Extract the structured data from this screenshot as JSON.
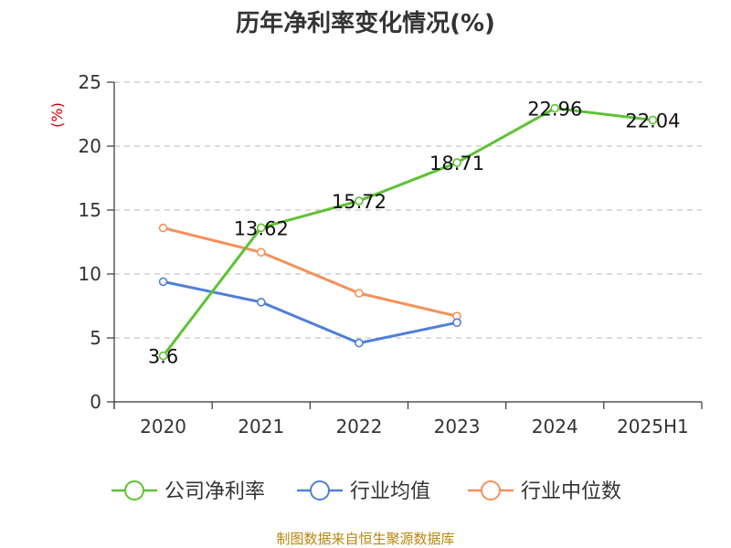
{
  "chart_data": {
    "type": "line",
    "title": "历年净利率变化情况(%)",
    "ylabel": "(%)",
    "xlabel": "",
    "categories": [
      "2020",
      "2021",
      "2022",
      "2023",
      "2024",
      "2025H1"
    ],
    "ylim": [
      0,
      25
    ],
    "yticks": [
      "0",
      "5",
      "10",
      "15",
      "20",
      "25"
    ],
    "grid": "horizontal-dashed",
    "legend_position": "bottom",
    "series": [
      {
        "name": "公司净利率",
        "color": "#5ec234",
        "values": [
          3.6,
          13.62,
          15.72,
          18.71,
          22.96,
          22.04
        ],
        "labels": [
          "3.6",
          "13.62",
          "15.72",
          "18.71",
          "22.96",
          "22.04"
        ]
      },
      {
        "name": "行业均值",
        "color": "#4f7fd9",
        "values": [
          9.4,
          7.8,
          4.6,
          6.2,
          null,
          null
        ]
      },
      {
        "name": "行业中位数",
        "color": "#f4915a",
        "values": [
          13.6,
          11.7,
          8.5,
          6.7,
          null,
          null
        ]
      }
    ]
  },
  "footer": {
    "source": "制图数据来自恒生聚源数据库"
  }
}
